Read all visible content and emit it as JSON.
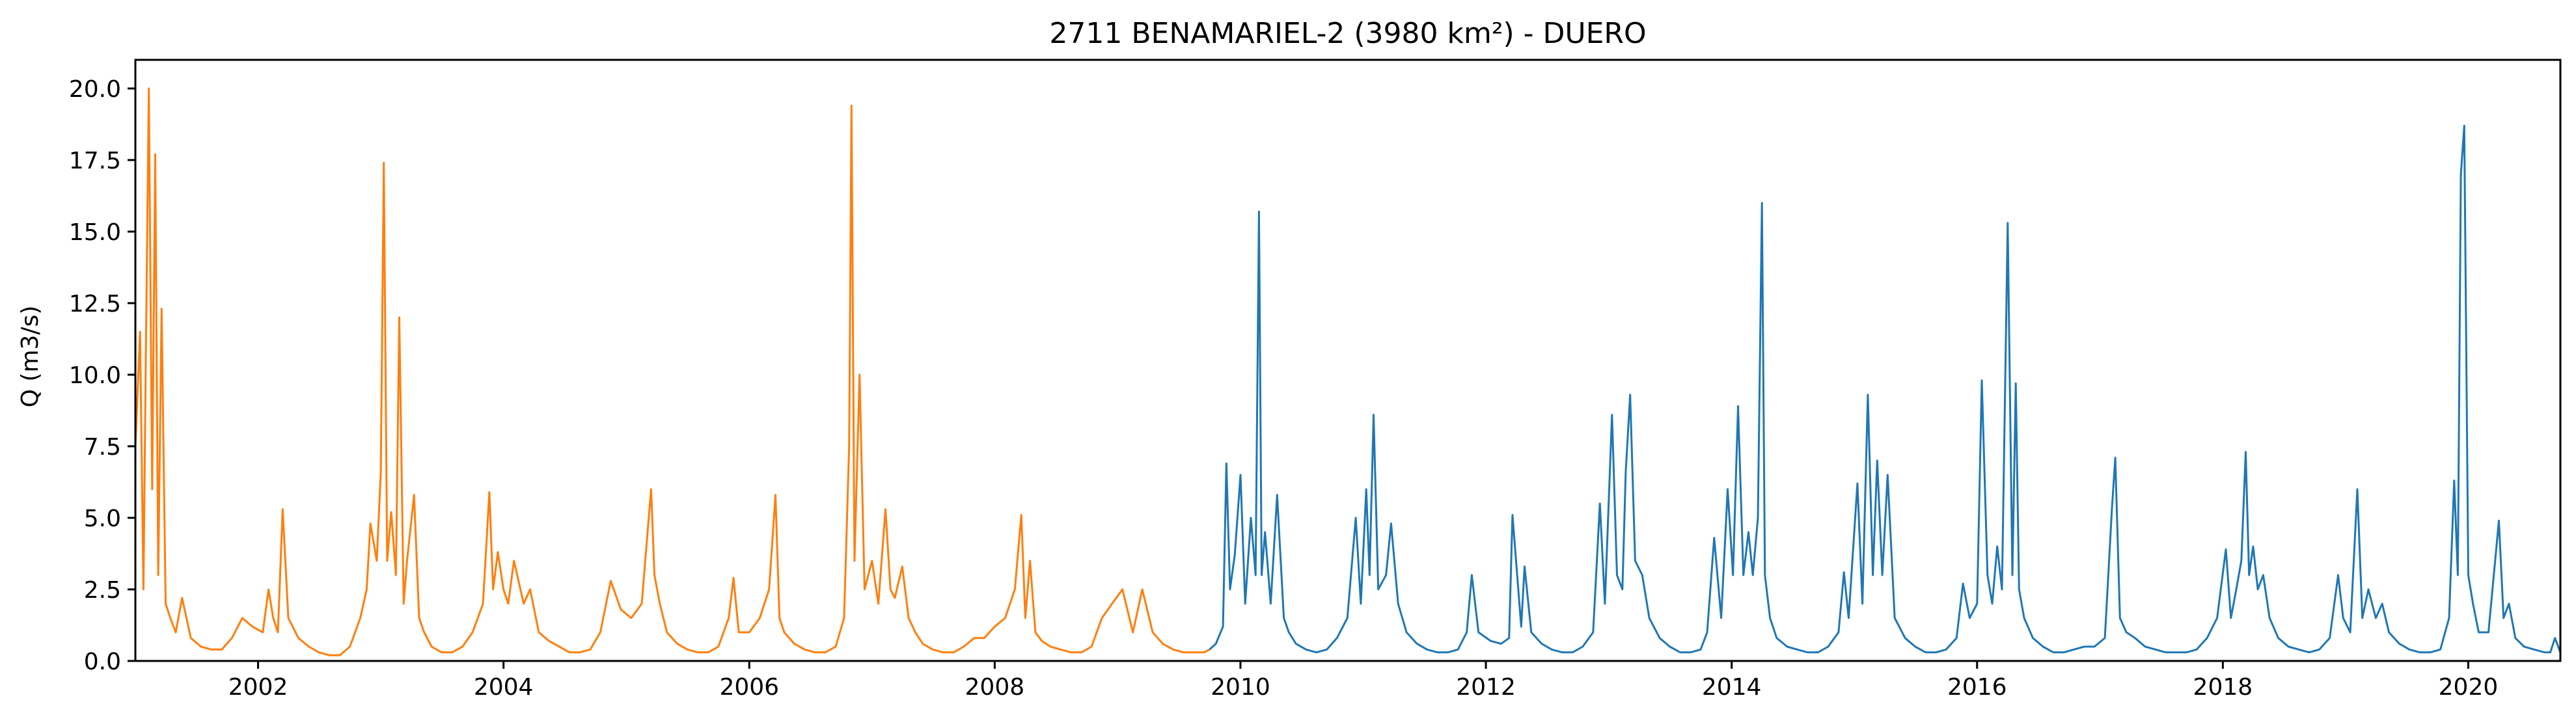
{
  "chart_data": {
    "type": "line",
    "title": "2711 BENAMARIEL-2 (3980 km²) - DUERO",
    "xlabel": "",
    "ylabel": "Q (m3/s)",
    "xlim": [
      "2001-01-01",
      "2020-10-01"
    ],
    "ylim": [
      0,
      21
    ],
    "x_ticks": [
      "2002",
      "2004",
      "2006",
      "2008",
      "2010",
      "2012",
      "2014",
      "2016",
      "2018",
      "2020"
    ],
    "y_ticks": [
      "0.0",
      "2.5",
      "5.0",
      "7.5",
      "10.0",
      "12.5",
      "15.0",
      "17.5",
      "20.0"
    ],
    "grid": false,
    "series": [
      {
        "color": "#ff7f0e",
        "x": [
          "2001-01-01",
          "2001-01-15",
          "2001-01-25",
          "2001-02-01",
          "2001-02-10",
          "2001-02-20",
          "2001-03-01",
          "2001-03-10",
          "2001-03-20",
          "2001-04-01",
          "2001-04-15",
          "2001-05-01",
          "2001-05-20",
          "2001-06-15",
          "2001-07-15",
          "2001-08-15",
          "2001-09-15",
          "2001-10-15",
          "2001-11-15",
          "2001-12-15",
          "2002-01-15",
          "2002-02-01",
          "2002-02-15",
          "2002-03-01",
          "2002-03-15",
          "2002-04-01",
          "2002-05-01",
          "2002-06-01",
          "2002-07-01",
          "2002-08-01",
          "2002-09-01",
          "2002-10-01",
          "2002-11-01",
          "2002-11-20",
          "2002-12-01",
          "2002-12-20",
          "2003-01-01",
          "2003-01-10",
          "2003-01-20",
          "2003-02-01",
          "2003-02-15",
          "2003-02-25",
          "2003-03-10",
          "2003-03-20",
          "2003-04-10",
          "2003-04-25",
          "2003-05-10",
          "2003-06-01",
          "2003-07-01",
          "2003-08-01",
          "2003-09-01",
          "2003-10-01",
          "2003-11-01",
          "2003-11-20",
          "2003-12-01",
          "2003-12-15",
          "2004-01-01",
          "2004-01-15",
          "2004-02-01",
          "2004-03-01",
          "2004-03-20",
          "2004-04-15",
          "2004-05-15",
          "2004-06-15",
          "2004-07-15",
          "2004-08-15",
          "2004-09-15",
          "2004-10-15",
          "2004-11-15",
          "2004-12-15",
          "2005-01-15",
          "2005-02-15",
          "2005-03-15",
          "2005-03-25",
          "2005-04-10",
          "2005-05-01",
          "2005-06-01",
          "2005-07-01",
          "2005-08-01",
          "2005-09-01",
          "2005-10-01",
          "2005-11-01",
          "2005-11-15",
          "2005-12-01",
          "2006-01-01",
          "2006-02-01",
          "2006-03-01",
          "2006-03-20",
          "2006-04-01",
          "2006-04-15",
          "2006-05-15",
          "2006-06-15",
          "2006-07-15",
          "2006-08-15",
          "2006-09-15",
          "2006-10-10",
          "2006-10-25",
          "2006-11-01",
          "2006-11-10",
          "2006-11-25",
          "2006-12-10",
          "2007-01-01",
          "2007-01-20",
          "2007-02-10",
          "2007-02-25",
          "2007-03-10",
          "2007-04-01",
          "2007-04-20",
          "2007-05-10",
          "2007-06-01",
          "2007-07-01",
          "2007-08-01",
          "2007-09-01",
          "2007-10-01",
          "2007-11-01",
          "2007-12-01",
          "2008-01-01",
          "2008-02-01",
          "2008-03-01",
          "2008-03-20",
          "2008-04-01",
          "2008-04-15",
          "2008-05-01",
          "2008-05-20",
          "2008-06-15",
          "2008-07-15",
          "2008-08-15",
          "2008-09-15",
          "2008-10-15",
          "2008-11-15",
          "2008-12-15",
          "2009-01-15",
          "2009-02-15",
          "2009-03-15",
          "2009-04-15",
          "2009-05-15",
          "2009-06-15",
          "2009-07-15",
          "2009-08-15",
          "2009-09-15",
          "2009-10-01"
        ],
        "values": [
          7.5,
          11.5,
          2.5,
          10.5,
          20.0,
          6.0,
          17.7,
          3.0,
          12.3,
          2.0,
          1.5,
          1.0,
          2.2,
          0.8,
          0.5,
          0.4,
          0.4,
          0.8,
          1.5,
          1.2,
          1.0,
          2.5,
          1.5,
          1.0,
          5.3,
          1.5,
          0.8,
          0.5,
          0.3,
          0.2,
          0.2,
          0.5,
          1.5,
          2.5,
          4.8,
          3.5,
          6.6,
          17.4,
          3.5,
          5.2,
          3.0,
          12.0,
          2.0,
          3.5,
          5.8,
          1.5,
          1.0,
          0.5,
          0.3,
          0.3,
          0.5,
          1.0,
          2.0,
          5.9,
          2.5,
          3.8,
          2.5,
          2.0,
          3.5,
          2.0,
          2.5,
          1.0,
          0.7,
          0.5,
          0.3,
          0.3,
          0.4,
          1.0,
          2.8,
          1.8,
          1.5,
          2.0,
          6.0,
          3.0,
          2.0,
          1.0,
          0.6,
          0.4,
          0.3,
          0.3,
          0.5,
          1.5,
          2.9,
          1.0,
          1.0,
          1.5,
          2.5,
          5.8,
          1.5,
          1.0,
          0.6,
          0.4,
          0.3,
          0.3,
          0.5,
          1.5,
          7.5,
          19.4,
          3.5,
          10.0,
          2.5,
          3.5,
          2.0,
          5.3,
          2.5,
          2.2,
          3.3,
          1.5,
          1.0,
          0.6,
          0.4,
          0.3,
          0.3,
          0.5,
          0.8,
          0.8,
          1.2,
          1.5,
          2.5,
          5.1,
          1.5,
          3.5,
          1.0,
          0.7,
          0.5,
          0.4,
          0.3,
          0.3,
          0.5,
          1.5,
          2.0,
          2.5,
          1.0,
          2.5,
          1.0,
          0.6,
          0.4,
          0.3,
          0.3,
          0.3,
          0.4
        ]
      },
      {
        "color": "#1f77b4",
        "x": [
          "2009-10-01",
          "2009-10-20",
          "2009-11-10",
          "2009-11-20",
          "2009-12-01",
          "2009-12-15",
          "2010-01-01",
          "2010-01-15",
          "2010-02-01",
          "2010-02-15",
          "2010-02-25",
          "2010-03-05",
          "2010-03-15",
          "2010-04-01",
          "2010-04-20",
          "2010-05-10",
          "2010-05-25",
          "2010-06-15",
          "2010-07-15",
          "2010-08-15",
          "2010-09-15",
          "2010-10-15",
          "2010-11-15",
          "2010-12-10",
          "2010-12-25",
          "2011-01-10",
          "2011-01-20",
          "2011-02-01",
          "2011-02-15",
          "2011-03-10",
          "2011-03-25",
          "2011-04-15",
          "2011-05-10",
          "2011-06-10",
          "2011-07-10",
          "2011-08-10",
          "2011-09-10",
          "2011-10-10",
          "2011-11-05",
          "2011-11-20",
          "2011-12-10",
          "2012-01-15",
          "2012-02-15",
          "2012-03-10",
          "2012-03-20",
          "2012-04-15",
          "2012-04-25",
          "2012-05-15",
          "2012-06-15",
          "2012-07-15",
          "2012-08-15",
          "2012-09-15",
          "2012-10-15",
          "2012-11-15",
          "2012-12-05",
          "2012-12-20",
          "2013-01-10",
          "2013-01-25",
          "2013-02-10",
          "2013-02-20",
          "2013-03-05",
          "2013-03-20",
          "2013-04-10",
          "2013-05-01",
          "2013-06-01",
          "2013-07-01",
          "2013-08-01",
          "2013-09-01",
          "2013-10-01",
          "2013-10-20",
          "2013-11-10",
          "2013-12-01",
          "2013-12-20",
          "2014-01-05",
          "2014-01-20",
          "2014-02-05",
          "2014-02-20",
          "2014-03-05",
          "2014-03-20",
          "2014-04-01",
          "2014-04-10",
          "2014-04-25",
          "2014-05-15",
          "2014-06-15",
          "2014-07-15",
          "2014-08-15",
          "2014-09-15",
          "2014-10-15",
          "2014-11-15",
          "2014-12-01",
          "2014-12-15",
          "2015-01-10",
          "2015-01-25",
          "2015-02-10",
          "2015-02-25",
          "2015-03-10",
          "2015-03-25",
          "2015-04-10",
          "2015-05-01",
          "2015-06-01",
          "2015-07-01",
          "2015-08-01",
          "2015-09-01",
          "2015-10-01",
          "2015-11-01",
          "2015-11-20",
          "2015-12-10",
          "2016-01-01",
          "2016-01-15",
          "2016-02-01",
          "2016-02-15",
          "2016-03-01",
          "2016-03-15",
          "2016-04-01",
          "2016-04-15",
          "2016-04-25",
          "2016-05-05",
          "2016-05-20",
          "2016-06-15",
          "2016-07-15",
          "2016-08-15",
          "2016-09-15",
          "2016-10-15",
          "2016-11-15",
          "2016-12-15",
          "2017-01-15",
          "2017-02-05",
          "2017-02-15",
          "2017-03-01",
          "2017-03-20",
          "2017-04-15",
          "2017-05-15",
          "2017-06-15",
          "2017-07-15",
          "2017-08-15",
          "2017-09-15",
          "2017-10-15",
          "2017-11-15",
          "2017-12-15",
          "2018-01-10",
          "2018-01-25",
          "2018-02-10",
          "2018-02-25",
          "2018-03-10",
          "2018-03-20",
          "2018-04-01",
          "2018-04-15",
          "2018-05-01",
          "2018-05-20",
          "2018-06-15",
          "2018-07-15",
          "2018-08-15",
          "2018-09-15",
          "2018-10-15",
          "2018-11-15",
          "2018-12-10",
          "2018-12-25",
          "2019-01-15",
          "2019-02-05",
          "2019-02-20",
          "2019-03-10",
          "2019-04-01",
          "2019-04-20",
          "2019-05-10",
          "2019-06-10",
          "2019-07-10",
          "2019-08-10",
          "2019-09-10",
          "2019-10-10",
          "2019-11-05",
          "2019-11-20",
          "2019-12-01",
          "2019-12-10",
          "2019-12-20",
          "2020-01-01",
          "2020-01-15",
          "2020-02-01",
          "2020-03-01",
          "2020-04-01",
          "2020-04-15",
          "2020-05-01",
          "2020-05-20",
          "2020-06-15",
          "2020-07-15",
          "2020-08-15",
          "2020-09-01",
          "2020-09-15",
          "2020-10-01"
        ],
        "values": [
          0.4,
          0.6,
          1.2,
          6.9,
          2.5,
          3.7,
          6.5,
          2.0,
          5.0,
          3.0,
          15.7,
          3.0,
          4.5,
          2.0,
          5.8,
          1.5,
          1.0,
          0.6,
          0.4,
          0.3,
          0.4,
          0.8,
          1.5,
          5.0,
          2.0,
          6.0,
          3.0,
          8.6,
          2.5,
          3.0,
          4.8,
          2.0,
          1.0,
          0.6,
          0.4,
          0.3,
          0.3,
          0.4,
          1.0,
          3.0,
          1.0,
          0.7,
          0.6,
          0.8,
          5.1,
          1.2,
          3.3,
          1.0,
          0.6,
          0.4,
          0.3,
          0.3,
          0.5,
          1.0,
          5.5,
          2.0,
          8.6,
          3.0,
          2.5,
          6.6,
          9.3,
          3.5,
          3.0,
          1.5,
          0.8,
          0.5,
          0.3,
          0.3,
          0.4,
          1.0,
          4.3,
          1.5,
          6.0,
          3.0,
          8.9,
          3.0,
          4.5,
          3.0,
          5.0,
          16.0,
          3.0,
          1.5,
          0.8,
          0.5,
          0.4,
          0.3,
          0.3,
          0.5,
          1.0,
          3.1,
          1.5,
          6.2,
          2.0,
          9.3,
          3.0,
          7.0,
          3.0,
          6.5,
          1.5,
          0.8,
          0.5,
          0.3,
          0.3,
          0.4,
          0.8,
          2.7,
          1.5,
          2.0,
          9.8,
          3.0,
          2.0,
          4.0,
          2.5,
          15.3,
          3.0,
          9.7,
          2.5,
          1.5,
          0.8,
          0.5,
          0.3,
          0.3,
          0.4,
          0.5,
          0.5,
          0.8,
          5.3,
          7.1,
          1.5,
          1.0,
          0.8,
          0.5,
          0.4,
          0.3,
          0.3,
          0.3,
          0.4,
          0.8,
          1.5,
          3.9,
          1.5,
          2.5,
          3.5,
          7.3,
          3.0,
          4.0,
          2.5,
          3.0,
          1.5,
          0.8,
          0.5,
          0.4,
          0.3,
          0.4,
          0.8,
          3.0,
          1.5,
          1.0,
          6.0,
          1.5,
          2.5,
          1.5,
          2.0,
          1.0,
          0.6,
          0.4,
          0.3,
          0.3,
          0.4,
          1.5,
          6.3,
          3.0,
          17.0,
          18.7,
          3.0,
          2.0,
          1.0,
          1.0,
          4.9,
          1.5,
          2.0,
          0.8,
          0.5,
          0.4,
          0.3,
          0.3,
          0.8,
          0.3
        ]
      }
    ]
  }
}
